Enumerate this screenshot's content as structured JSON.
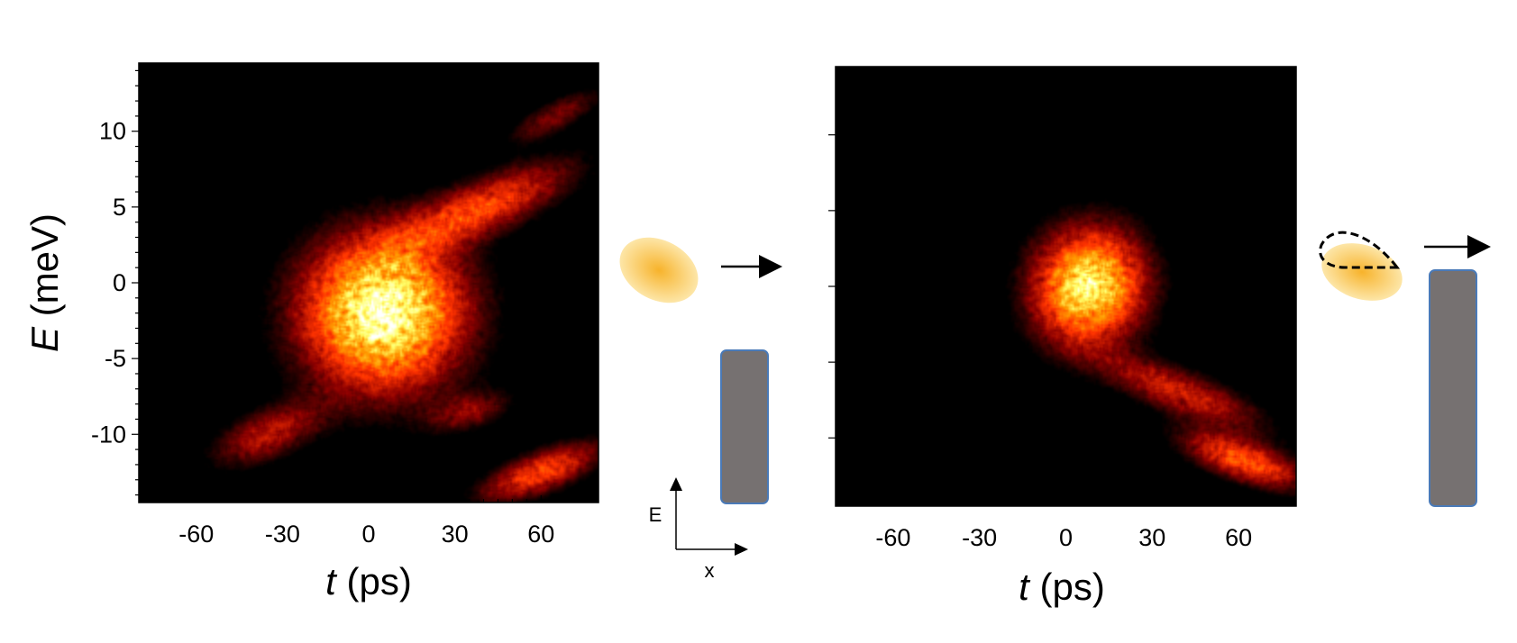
{
  "chart_data": [
    {
      "type": "heatmap",
      "xlabel_symbol": "t",
      "xlabel_unit": " (ps)",
      "ylabel_symbol": "E",
      "ylabel_unit": " (meV)",
      "xlim": [
        -80,
        80
      ],
      "ylim": [
        -14.5,
        14.5
      ],
      "xticks": [
        -60,
        -30,
        0,
        30,
        60
      ],
      "yticks": [
        10,
        5,
        0,
        -5,
        -10
      ],
      "colormap": [
        "#000000",
        "#8b0000",
        "#ff3300",
        "#ff9900",
        "#ffff66",
        "#ffffff"
      ],
      "features": [
        {
          "x": 5,
          "y": -2,
          "sx": 19,
          "sy": 3.4,
          "angle": 25,
          "peak": 1.0
        },
        {
          "x": 40,
          "y": 5,
          "sx": 22,
          "sy": 1.2,
          "angle": 24,
          "peak": 0.5
        },
        {
          "x": 65,
          "y": 11,
          "sx": 12,
          "sy": 0.7,
          "angle": 28,
          "peak": 0.25
        },
        {
          "x": -35,
          "y": -10,
          "sx": 14,
          "sy": 1.1,
          "angle": 24,
          "peak": 0.35
        },
        {
          "x": 60,
          "y": -12.5,
          "sx": 15,
          "sy": 0.9,
          "angle": 22,
          "peak": 0.5
        },
        {
          "x": 35,
          "y": -8.5,
          "sx": 10,
          "sy": 0.8,
          "angle": 15,
          "peak": 0.25
        }
      ]
    },
    {
      "type": "heatmap",
      "xlabel_symbol": "t",
      "xlabel_unit": " (ps)",
      "ylabel_symbol": "E",
      "ylabel_unit": " (meV)",
      "xlim": [
        -80,
        80
      ],
      "ylim": [
        -14.5,
        14.5
      ],
      "xticks": [
        -60,
        -30,
        0,
        30,
        60
      ],
      "features": [
        {
          "x": 8,
          "y": 0,
          "sx": 13,
          "sy": 2.6,
          "angle": -18,
          "peak": 0.9
        },
        {
          "x": 40,
          "y": -7,
          "sx": 20,
          "sy": 1.0,
          "angle": -22,
          "peak": 0.4
        },
        {
          "x": 62,
          "y": -11.5,
          "sx": 15,
          "sy": 0.9,
          "angle": -20,
          "peak": 0.55
        }
      ]
    }
  ],
  "schematic": {
    "axis_labels": {
      "vertical": "E",
      "horizontal": "x"
    },
    "colors": {
      "packet_core": "#f7b32b",
      "packet_edge": "#fde6a8",
      "barrier_fill": "#767171",
      "barrier_edge": "#4a7ab8",
      "arrow": "#000000"
    }
  }
}
